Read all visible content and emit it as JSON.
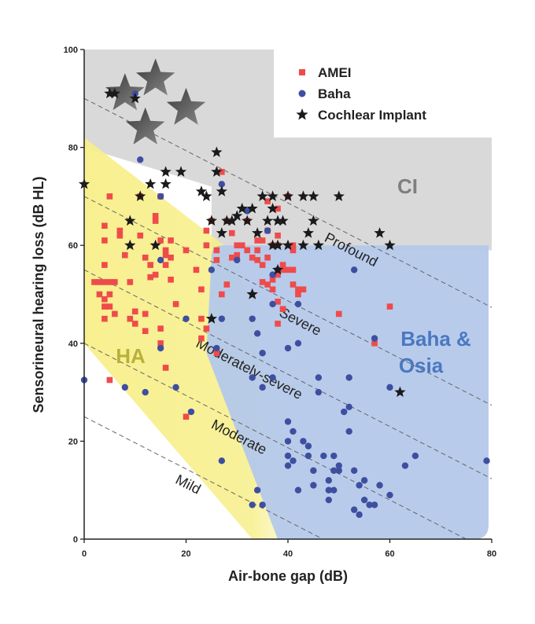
{
  "chart_data": {
    "type": "scatter",
    "title": "",
    "xlabel": "Air-bone gap (dB)",
    "ylabel": "Sensorineural hearing loss (dB HL)",
    "xlim": [
      0,
      80
    ],
    "ylim": [
      0,
      100
    ],
    "x_ticks": [
      "0",
      "20",
      "40",
      "60",
      "80"
    ],
    "y_ticks": [
      "0",
      "20",
      "40",
      "60",
      "80",
      "100"
    ],
    "grid": false,
    "legend_position": "top-right",
    "region_labels": {
      "ci": "CI",
      "ha": "HA",
      "baha_line1": "Baha &",
      "baha_line2": "Osia"
    },
    "region_colors": {
      "ci": "#d9d9d9",
      "ha": "#f7ef8a",
      "baha": "#b4c8ea",
      "ci_text": "#7f7f7f",
      "ha_text": "#b9b03a",
      "baha_text": "#4a78c0"
    },
    "severity_bands": [
      {
        "label": "Mild",
        "intercept": 25
      },
      {
        "label": "Moderate",
        "intercept": 40
      },
      {
        "label": "Moderately-severe",
        "intercept": 55
      },
      {
        "label": "Severe",
        "intercept": 70
      },
      {
        "label": "Profound",
        "intercept": 90
      }
    ],
    "series": [
      {
        "name": "AMEI",
        "marker": "square",
        "color": "#ef4b4b",
        "points": [
          [
            2,
            52.5
          ],
          [
            3,
            52.5
          ],
          [
            3,
            50
          ],
          [
            4,
            52.5
          ],
          [
            4,
            49
          ],
          [
            4,
            47.5
          ],
          [
            4,
            45
          ],
          [
            5,
            52.5
          ],
          [
            5,
            50
          ],
          [
            5,
            47.5
          ],
          [
            5,
            32.5
          ],
          [
            4,
            56
          ],
          [
            4,
            64
          ],
          [
            4,
            61
          ],
          [
            5,
            70
          ],
          [
            6,
            52.5
          ],
          [
            6,
            46
          ],
          [
            7,
            63
          ],
          [
            7,
            62
          ],
          [
            9,
            52.5
          ],
          [
            9,
            45
          ],
          [
            10,
            46.5
          ],
          [
            11,
            70
          ],
          [
            11,
            62
          ],
          [
            12,
            57.5
          ],
          [
            12,
            46
          ],
          [
            12,
            42.5
          ],
          [
            13,
            56
          ],
          [
            13,
            53.5
          ],
          [
            14,
            66
          ],
          [
            14,
            65
          ],
          [
            15,
            61
          ],
          [
            15,
            70
          ],
          [
            15,
            43
          ],
          [
            15,
            40
          ],
          [
            16,
            59
          ],
          [
            16,
            58
          ],
          [
            16,
            56
          ],
          [
            16,
            35
          ],
          [
            17,
            53
          ],
          [
            17,
            61
          ],
          [
            17,
            57.5
          ],
          [
            20,
            25
          ],
          [
            23,
            45
          ],
          [
            23,
            41
          ],
          [
            23,
            51
          ],
          [
            24,
            43
          ],
          [
            24,
            63
          ],
          [
            25,
            65
          ],
          [
            26,
            59
          ],
          [
            26,
            38
          ],
          [
            27,
            50
          ],
          [
            27,
            75
          ],
          [
            28,
            65
          ],
          [
            29,
            62.5
          ],
          [
            29,
            57.5
          ],
          [
            30,
            60
          ],
          [
            31,
            60
          ],
          [
            32,
            65
          ],
          [
            33,
            57.5
          ],
          [
            34,
            57
          ],
          [
            34,
            59
          ],
          [
            35,
            61
          ],
          [
            35,
            56
          ],
          [
            35,
            52.5
          ],
          [
            36,
            69
          ],
          [
            36,
            57.5
          ],
          [
            36,
            52
          ],
          [
            37,
            53
          ],
          [
            37,
            51
          ],
          [
            37,
            60
          ],
          [
            38,
            48.5
          ],
          [
            38,
            44
          ],
          [
            38,
            67.5
          ],
          [
            38,
            62
          ],
          [
            38,
            60
          ],
          [
            39,
            56
          ],
          [
            39,
            55
          ],
          [
            39,
            47
          ],
          [
            40,
            70
          ],
          [
            40,
            55
          ],
          [
            41,
            60
          ],
          [
            41,
            59
          ],
          [
            41,
            55
          ],
          [
            41,
            52
          ],
          [
            42,
            50
          ],
          [
            42,
            51
          ],
          [
            43,
            51
          ],
          [
            50,
            46
          ],
          [
            60,
            47.5
          ],
          [
            57,
            40
          ],
          [
            38,
            54
          ],
          [
            36,
            63
          ],
          [
            34,
            61
          ],
          [
            32,
            59
          ],
          [
            30,
            58
          ],
          [
            28,
            52
          ],
          [
            26,
            57
          ],
          [
            24,
            60
          ],
          [
            22,
            55
          ],
          [
            20,
            59
          ],
          [
            18,
            48
          ],
          [
            14,
            54
          ],
          [
            10,
            44
          ],
          [
            8,
            58
          ]
        ]
      },
      {
        "name": "Baha",
        "marker": "circle",
        "color": "#3e4fa0",
        "points": [
          [
            0,
            32.5
          ],
          [
            8,
            31
          ],
          [
            10,
            91
          ],
          [
            11,
            77.5
          ],
          [
            12,
            30
          ],
          [
            15,
            57
          ],
          [
            15,
            70
          ],
          [
            15,
            39
          ],
          [
            18,
            31
          ],
          [
            20,
            45
          ],
          [
            21,
            26
          ],
          [
            25,
            55
          ],
          [
            26,
            39
          ],
          [
            27,
            45
          ],
          [
            27,
            72.5
          ],
          [
            27,
            16
          ],
          [
            30,
            57
          ],
          [
            32,
            67
          ],
          [
            33,
            45
          ],
          [
            33,
            33
          ],
          [
            33,
            7
          ],
          [
            34,
            42
          ],
          [
            34,
            10
          ],
          [
            35,
            31
          ],
          [
            35,
            38
          ],
          [
            35,
            7
          ],
          [
            36,
            63
          ],
          [
            37,
            48
          ],
          [
            37,
            54
          ],
          [
            37,
            33
          ],
          [
            38,
            55
          ],
          [
            40,
            39
          ],
          [
            40,
            24
          ],
          [
            40,
            20
          ],
          [
            40,
            17
          ],
          [
            40,
            15
          ],
          [
            41,
            22
          ],
          [
            41,
            16
          ],
          [
            42,
            10
          ],
          [
            42,
            48
          ],
          [
            42,
            40
          ],
          [
            43,
            20
          ],
          [
            44,
            19
          ],
          [
            44,
            17
          ],
          [
            45,
            11
          ],
          [
            45,
            14
          ],
          [
            46,
            33
          ],
          [
            46,
            30
          ],
          [
            47,
            17
          ],
          [
            48,
            12
          ],
          [
            48,
            10
          ],
          [
            48,
            8
          ],
          [
            49,
            17
          ],
          [
            49,
            14
          ],
          [
            49,
            10
          ],
          [
            50,
            14
          ],
          [
            50,
            15
          ],
          [
            51,
            26
          ],
          [
            52,
            27
          ],
          [
            52,
            33
          ],
          [
            52,
            22
          ],
          [
            53,
            55
          ],
          [
            53,
            14
          ],
          [
            53,
            6
          ],
          [
            54,
            11
          ],
          [
            54,
            5
          ],
          [
            55,
            12
          ],
          [
            55,
            8
          ],
          [
            56,
            7
          ],
          [
            57,
            7
          ],
          [
            57,
            41
          ],
          [
            58,
            11
          ],
          [
            60,
            31
          ],
          [
            60,
            9
          ],
          [
            63,
            15
          ],
          [
            65,
            17
          ],
          [
            79,
            16
          ]
        ]
      },
      {
        "name": "Cochlear Implant",
        "marker": "star",
        "color": "#1a1a1a",
        "points": [
          [
            0,
            72.5
          ],
          [
            5,
            91
          ],
          [
            6,
            91
          ],
          [
            9,
            65
          ],
          [
            9,
            60
          ],
          [
            10,
            90
          ],
          [
            11,
            70
          ],
          [
            13,
            72.5
          ],
          [
            14,
            60
          ],
          [
            16,
            75
          ],
          [
            16,
            72.5
          ],
          [
            19,
            75
          ],
          [
            23,
            71
          ],
          [
            24,
            70
          ],
          [
            25,
            65
          ],
          [
            25,
            45
          ],
          [
            26,
            79
          ],
          [
            26,
            75
          ],
          [
            27,
            71
          ],
          [
            27,
            62.5
          ],
          [
            28,
            65
          ],
          [
            29,
            65
          ],
          [
            30,
            66
          ],
          [
            31,
            67.5
          ],
          [
            32,
            65
          ],
          [
            33,
            67.5
          ],
          [
            33,
            50
          ],
          [
            34,
            62.5
          ],
          [
            35,
            70
          ],
          [
            36,
            65
          ],
          [
            37,
            60
          ],
          [
            37,
            67.5
          ],
          [
            37,
            70
          ],
          [
            38,
            65
          ],
          [
            38,
            55
          ],
          [
            39,
            65
          ],
          [
            40,
            70
          ],
          [
            40,
            60
          ],
          [
            43,
            70
          ],
          [
            43,
            60
          ],
          [
            44,
            62.5
          ],
          [
            45,
            65
          ],
          [
            45,
            70
          ],
          [
            46,
            60
          ],
          [
            50,
            70
          ],
          [
            58,
            62.5
          ],
          [
            60,
            60
          ],
          [
            62,
            30
          ],
          [
            33,
            50
          ],
          [
            38,
            60
          ]
        ]
      }
    ],
    "large_stars": [
      [
        14,
        94
      ],
      [
        8,
        91
      ],
      [
        20,
        88
      ],
      [
        12,
        84
      ]
    ]
  }
}
